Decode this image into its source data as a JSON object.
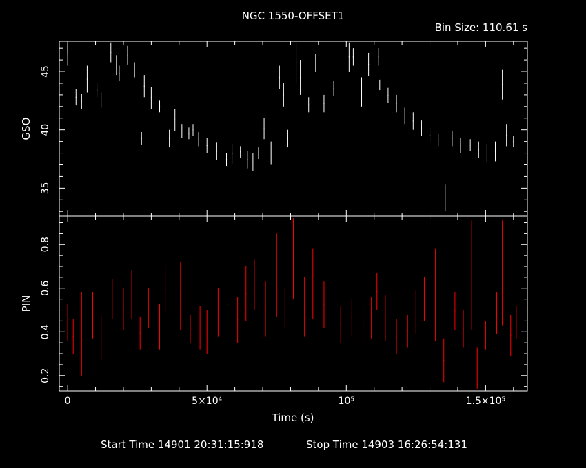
{
  "title": "NGC 1550-OFFSET1",
  "bin_size": "Bin Size: 110.61 s",
  "start_time": "Start Time 14901 20:31:15:918",
  "stop_time": "Stop Time 14903 16:26:54:131",
  "colors": {
    "background": "#000000",
    "axes": "#ffffff",
    "gso": "#ffffff",
    "pin": "#ff0000"
  },
  "chart_data": [
    {
      "type": "scatter",
      "name": "GSO panel",
      "ylabel": "GSO",
      "xlim": [
        -3000,
        165000
      ],
      "ylim": [
        32.6,
        47.6
      ],
      "yticks": [
        35,
        40,
        45
      ],
      "grid": false,
      "y_seg": [
        [
          0,
          35,
          46.5,
          47.4
        ],
        [
          0,
          60,
          45.5,
          47.2
        ],
        [
          3000,
          55,
          42.1,
          43.5
        ],
        [
          5000,
          60,
          41.8,
          43.1
        ],
        [
          7000,
          40,
          43.2,
          45.5
        ],
        [
          10500,
          70,
          42.8,
          44.0
        ],
        [
          12000,
          60,
          41.9,
          43.2
        ],
        [
          15500,
          50,
          45.8,
          47.5
        ],
        [
          17500,
          60,
          44.7,
          46.4
        ],
        [
          18500,
          50,
          44.2,
          45.5
        ],
        [
          21500,
          60,
          45.6,
          47.2
        ],
        [
          24000,
          60,
          44.5,
          45.8
        ],
        [
          26500,
          20,
          38.7,
          39.8
        ],
        [
          27500,
          70,
          42.8,
          44.7
        ],
        [
          30000,
          70,
          41.8,
          43.7
        ],
        [
          33000,
          80,
          41.5,
          42.5
        ],
        [
          36500,
          60,
          38.5,
          40.0
        ],
        [
          38500,
          70,
          39.9,
          41.8
        ],
        [
          41000,
          60,
          39.3,
          40.5
        ],
        [
          43500,
          60,
          39.2,
          40.2
        ],
        [
          45000,
          40,
          39.5,
          40.5
        ],
        [
          47000,
          60,
          38.6,
          39.8
        ],
        [
          50000,
          80,
          38.0,
          39.3
        ],
        [
          53500,
          80,
          37.4,
          38.9
        ],
        [
          57000,
          20,
          36.9,
          38.0
        ],
        [
          59000,
          70,
          37.1,
          38.8
        ],
        [
          62000,
          60,
          37.6,
          38.6
        ],
        [
          64500,
          60,
          36.7,
          38.2
        ],
        [
          66500,
          60,
          36.5,
          38.0
        ],
        [
          68500,
          40,
          37.5,
          38.5
        ],
        [
          70500,
          60,
          39.2,
          41.0
        ],
        [
          73000,
          50,
          37.0,
          39.0
        ],
        [
          76000,
          10,
          43.5,
          45.5
        ],
        [
          77500,
          10,
          42.0,
          44.0
        ],
        [
          79000,
          10,
          38.5,
          40.0
        ],
        [
          82000,
          30,
          44.0,
          47.5
        ],
        [
          83500,
          40,
          43.0,
          46.0
        ],
        [
          86500,
          60,
          41.5,
          42.8
        ],
        [
          89000,
          20,
          45.0,
          46.5
        ],
        [
          92000,
          50,
          41.5,
          43.0
        ],
        [
          95500,
          60,
          42.9,
          44.2
        ],
        [
          101000,
          20,
          45.0,
          47.5
        ],
        [
          102500,
          60,
          45.5,
          47.0
        ],
        [
          105500,
          10,
          42.0,
          44.5
        ],
        [
          108000,
          70,
          44.6,
          46.6
        ],
        [
          111500,
          10,
          45.5,
          47.0
        ],
        [
          112000,
          60,
          43.4,
          44.3
        ],
        [
          115000,
          70,
          42.3,
          43.6
        ],
        [
          118000,
          60,
          41.5,
          43.0
        ],
        [
          121000,
          60,
          40.5,
          41.9
        ],
        [
          124000,
          70,
          40.0,
          41.5
        ],
        [
          127000,
          60,
          39.5,
          40.8
        ],
        [
          130000,
          60,
          38.9,
          40.2
        ],
        [
          133000,
          60,
          38.6,
          39.7
        ],
        [
          135500,
          10,
          33.0,
          35.3
        ],
        [
          138000,
          60,
          38.6,
          39.9
        ],
        [
          141000,
          70,
          38.0,
          39.3
        ],
        [
          144500,
          60,
          38.2,
          39.2
        ],
        [
          147500,
          70,
          37.6,
          39.0
        ],
        [
          150500,
          60,
          37.2,
          38.8
        ],
        [
          153500,
          40,
          37.3,
          39.0
        ],
        [
          156000,
          20,
          42.6,
          45.2
        ],
        [
          157500,
          60,
          38.6,
          40.5
        ],
        [
          160000,
          40,
          38.5,
          39.5
        ]
      ]
    },
    {
      "type": "scatter",
      "name": "PIN panel",
      "ylabel": "PIN",
      "xlabel": "Time (s)",
      "xlim": [
        -3000,
        165000
      ],
      "ylim": [
        0.13,
        0.93
      ],
      "yticks": [
        0.2,
        0.4,
        0.6,
        0.8
      ],
      "xticks": [
        {
          "value": 0,
          "label": "0"
        },
        {
          "value": 50000,
          "label": "5×10⁴"
        },
        {
          "value": 100000,
          "label": "10⁵"
        },
        {
          "value": 150000,
          "label": "1.5×10⁵"
        }
      ],
      "grid": false,
      "y_seg": [
        [
          0,
          25,
          0.36,
          0.53
        ],
        [
          2000,
          10,
          0.3,
          0.46
        ],
        [
          5000,
          10,
          0.2,
          0.58
        ],
        [
          9000,
          10,
          0.37,
          0.58
        ],
        [
          12000,
          20,
          0.27,
          0.48
        ],
        [
          16000,
          10,
          0.46,
          0.64
        ],
        [
          20000,
          10,
          0.41,
          0.6
        ],
        [
          23000,
          25,
          0.46,
          0.68
        ],
        [
          26000,
          20,
          0.32,
          0.47
        ],
        [
          29000,
          15,
          0.42,
          0.6
        ],
        [
          33000,
          15,
          0.32,
          0.53
        ],
        [
          35000,
          15,
          0.49,
          0.7
        ],
        [
          40500,
          10,
          0.41,
          0.72
        ],
        [
          44000,
          10,
          0.35,
          0.48
        ],
        [
          47500,
          15,
          0.32,
          0.52
        ],
        [
          50000,
          10,
          0.3,
          0.5
        ],
        [
          54000,
          10,
          0.38,
          0.6
        ],
        [
          57500,
          10,
          0.4,
          0.65
        ],
        [
          61000,
          15,
          0.35,
          0.56
        ],
        [
          64000,
          10,
          0.45,
          0.7
        ],
        [
          67000,
          15,
          0.5,
          0.73
        ],
        [
          71000,
          10,
          0.38,
          0.63
        ],
        [
          75000,
          15,
          0.47,
          0.85
        ],
        [
          78000,
          10,
          0.42,
          0.6
        ],
        [
          81000,
          15,
          0.55,
          0.92
        ],
        [
          85000,
          10,
          0.38,
          0.65
        ],
        [
          88000,
          10,
          0.46,
          0.78
        ],
        [
          92000,
          10,
          0.42,
          0.63
        ],
        [
          98000,
          10,
          0.35,
          0.52
        ],
        [
          102000,
          15,
          0.38,
          0.55
        ],
        [
          106000,
          15,
          0.33,
          0.51
        ],
        [
          109000,
          10,
          0.37,
          0.56
        ],
        [
          111000,
          10,
          0.5,
          0.67
        ],
        [
          114000,
          15,
          0.36,
          0.57
        ],
        [
          118000,
          15,
          0.3,
          0.46
        ],
        [
          122000,
          10,
          0.33,
          0.48
        ],
        [
          125000,
          10,
          0.39,
          0.59
        ],
        [
          128000,
          10,
          0.45,
          0.65
        ],
        [
          132000,
          10,
          0.36,
          0.78
        ],
        [
          135000,
          10,
          0.17,
          0.37
        ],
        [
          139000,
          10,
          0.41,
          0.58
        ],
        [
          142000,
          15,
          0.33,
          0.5
        ],
        [
          145000,
          10,
          0.41,
          0.91
        ],
        [
          147000,
          10,
          0.14,
          0.33
        ],
        [
          150000,
          15,
          0.32,
          0.45
        ],
        [
          154000,
          10,
          0.39,
          0.58
        ],
        [
          156000,
          10,
          0.43,
          0.91
        ],
        [
          159000,
          10,
          0.29,
          0.48
        ],
        [
          161000,
          10,
          0.37,
          0.52
        ]
      ]
    }
  ]
}
